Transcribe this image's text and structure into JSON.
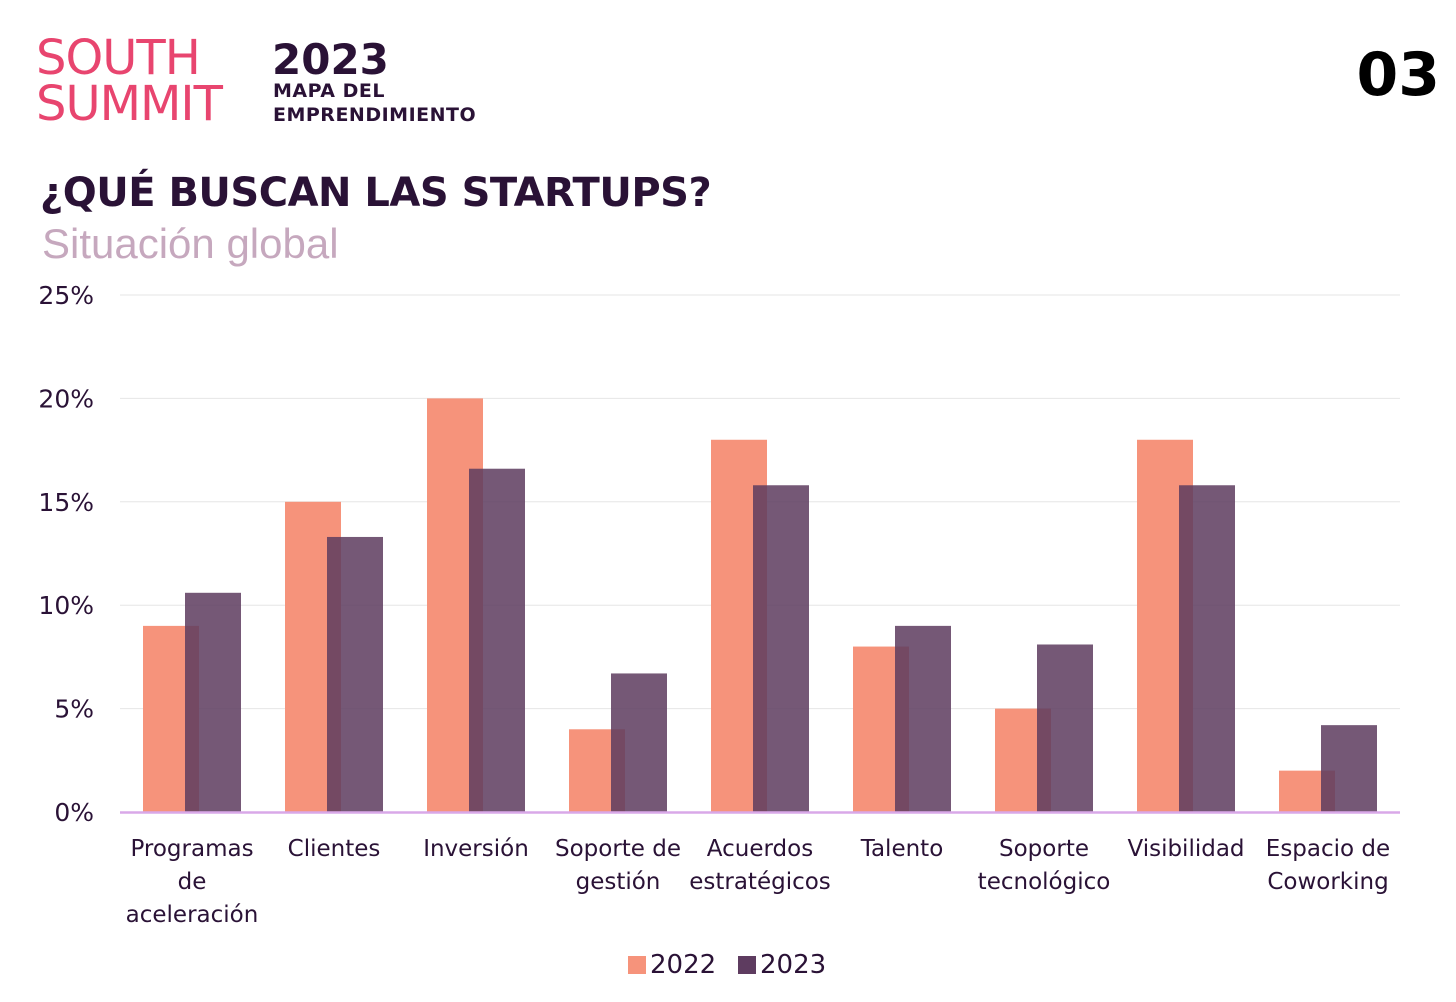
{
  "header": {
    "logo_line1": "SOUTH",
    "logo_line2": "SUMMIT",
    "year": "2023",
    "subtitle_line1": "MAPA  DEL",
    "subtitle_line2": "EMPRENDIMIENTO",
    "page_number": "03"
  },
  "colors": {
    "brand": "#e8456f",
    "dark": "#2a1236",
    "subtitle": "#c6a8be",
    "series_2022": "#f6937b",
    "series_2023": "#5e3c60",
    "baseline": "#d9a8e8",
    "grid": "#e6e6e6"
  },
  "chart_data": {
    "type": "bar",
    "title": "¿QUÉ BUSCAN LAS STARTUPS?",
    "subtitle": "Situación global",
    "categories": [
      [
        "Programas",
        "de",
        "aceleración"
      ],
      [
        "Clientes"
      ],
      [
        "Inversión"
      ],
      [
        "Soporte de",
        "gestión"
      ],
      [
        "Acuerdos",
        "estratégicos"
      ],
      [
        "Talento"
      ],
      [
        "Soporte",
        "tecnológico"
      ],
      [
        "Visibilidad"
      ],
      [
        "Espacio de",
        "Coworking"
      ]
    ],
    "series": [
      {
        "name": "2022",
        "color": "#f6937b",
        "values": [
          9,
          15,
          20,
          4,
          18,
          8,
          5,
          18,
          2
        ]
      },
      {
        "name": "2023",
        "color": "#5e3c60",
        "values": [
          10.6,
          13.3,
          16.6,
          6.7,
          15.8,
          9,
          8.1,
          15.8,
          4.2
        ]
      }
    ],
    "ylim": [
      0,
      25
    ],
    "yticks": [
      0,
      5,
      10,
      15,
      20,
      25
    ],
    "ytick_labels": [
      "0%",
      "5%",
      "10%",
      "15%",
      "20%",
      "25%"
    ],
    "grid": true,
    "legend_position": "bottom-center"
  }
}
